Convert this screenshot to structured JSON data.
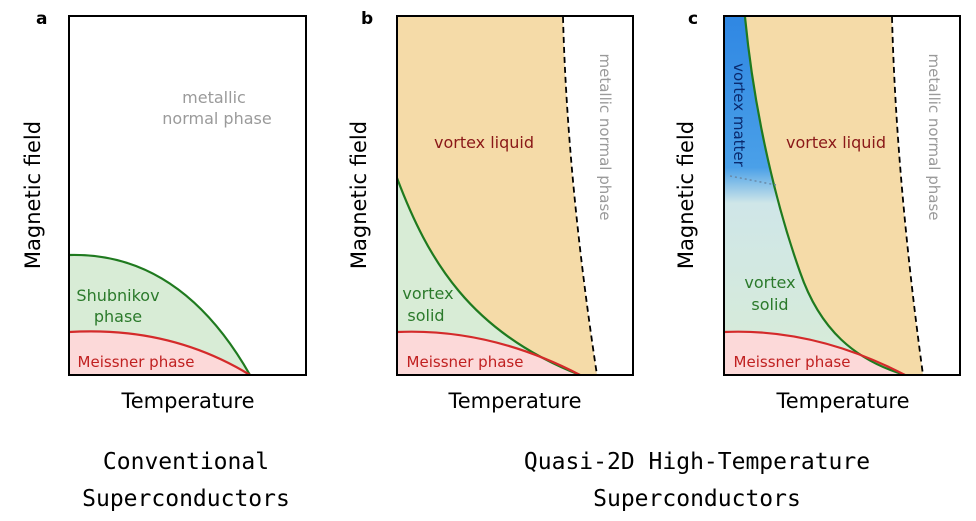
{
  "panels": [
    {
      "letter": "a",
      "ylabel": "Magnetic field",
      "xlabel": "Temperature",
      "regions": {
        "normal_line1": "metallic",
        "normal_line2": "normal phase",
        "shubnikov_line1": "Shubnikov",
        "shubnikov_line2": "phase",
        "meissner": "Meissner phase"
      }
    },
    {
      "letter": "b",
      "ylabel": "Magnetic field",
      "xlabel": "Temperature",
      "regions": {
        "normal": "metallic normal phase",
        "liquid": "vortex liquid",
        "solid_line1": "vortex",
        "solid_line2": "solid",
        "meissner": "Meissner phase"
      }
    },
    {
      "letter": "c",
      "ylabel": "Magnetic field",
      "xlabel": "Temperature",
      "regions": {
        "normal": "metallic normal phase",
        "liquid": "vortex liquid",
        "matter": "vortex matter",
        "solid_line1": "vortex",
        "solid_line2": "solid",
        "meissner": "Meissner phase"
      }
    }
  ],
  "captions": {
    "conventional_line1": "Conventional",
    "conventional_line2": "Superconductors",
    "quasi_line1": "Quasi-2D High-Temperature",
    "quasi_line2": "Superconductors"
  },
  "colors": {
    "meissner_fill": "#fcd9d9",
    "meissner_line": "#d42a2a",
    "solid_fill": "#d8ecd6",
    "solid_line": "#1f7a1f",
    "liquid_fill": "#f5dba8",
    "matter_fill": "#3d8fe0",
    "gray_text": "#9a9a9a",
    "liquid_text": "#8a1818",
    "solid_text": "#2b7a2b",
    "matter_text": "#0a2a6e"
  }
}
